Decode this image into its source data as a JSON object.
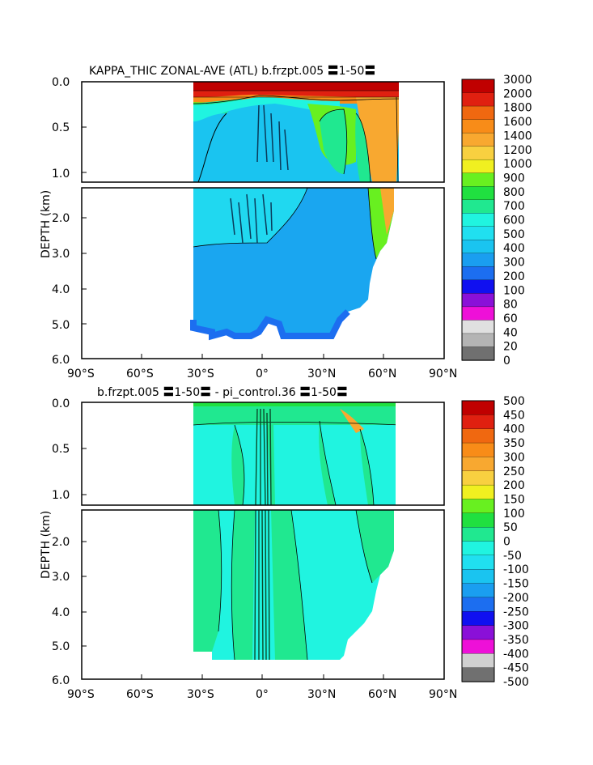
{
  "panels": [
    {
      "title": "KAPPA_THIC ZONAL-AVE (ATL) b.frzpt.005 〓1-50〓",
      "ylabel": "DEPTH (km)",
      "colorbar_labels": [
        "3000",
        "2000",
        "1800",
        "1600",
        "1400",
        "1200",
        "1000",
        "900",
        "800",
        "700",
        "600",
        "500",
        "400",
        "300",
        "200",
        "100",
        "80",
        "60",
        "40",
        "20",
        "0"
      ]
    },
    {
      "title": "b.frzpt.005 〓1-50〓 - pi_control.36 〓1-50〓",
      "ylabel": "DEPTH (km)",
      "colorbar_labels": [
        "500",
        "450",
        "400",
        "350",
        "300",
        "250",
        "200",
        "150",
        "100",
        "50",
        "0",
        "-50",
        "-100",
        "-150",
        "-200",
        "-250",
        "-300",
        "-350",
        "-400",
        "-450",
        "-500"
      ]
    }
  ],
  "chart_data": [
    {
      "type": "heatmap",
      "title": "KAPPA_THIC ZONAL-AVE (ATL) b.frzpt.005 〓1-50〓",
      "xlabel": "",
      "ylabel": "DEPTH (km)",
      "x_ticks": [
        "90°S",
        "60°S",
        "30°S",
        "0°",
        "30°N",
        "60°N",
        "90°N"
      ],
      "y_ticks_upper": [
        "0.0",
        "0.5",
        "1.0"
      ],
      "y_ticks_lower": [
        "2.0",
        "3.0",
        "4.0",
        "5.0",
        "6.0"
      ],
      "xlim": [
        -90,
        90
      ],
      "ylim_km": [
        6.0,
        0.0
      ],
      "levels": [
        0,
        20,
        40,
        60,
        80,
        100,
        200,
        300,
        400,
        500,
        600,
        700,
        800,
        900,
        1000,
        1200,
        1400,
        1600,
        1800,
        2000,
        3000
      ],
      "colors": [
        "#707070",
        "#b4b4b4",
        "#e0e0e0",
        "#ee10d8",
        "#8a10d8",
        "#1010f0",
        "#1c6ef0",
        "#1a9ef0",
        "#1ac4f0",
        "#20e0f0",
        "#20f4e0",
        "#20e890",
        "#20e040",
        "#68f020",
        "#f0f020",
        "#f8d040",
        "#f8a830",
        "#f88c18",
        "#f06810",
        "#e02010",
        "#c00000"
      ],
      "ocean_extent_latitude": [
        -34,
        68
      ],
      "note_values": "upper ~3000 near surface, mostly 200-400 at depth, 1200-1400 near 60N in upper 1 km"
    },
    {
      "type": "heatmap",
      "title": "b.frzpt.005 〓1-50〓 - pi_control.36 〓1-50〓",
      "xlabel": "",
      "ylabel": "DEPTH (km)",
      "x_ticks": [
        "90°S",
        "60°S",
        "30°S",
        "0°",
        "30°N",
        "60°N",
        "90°N"
      ],
      "y_ticks_upper": [
        "0.0",
        "0.5",
        "1.0"
      ],
      "y_ticks_lower": [
        "2.0",
        "3.0",
        "4.0",
        "5.0",
        "6.0"
      ],
      "xlim": [
        -90,
        90
      ],
      "ylim_km": [
        6.0,
        0.0
      ],
      "levels": [
        -500,
        -450,
        -400,
        -350,
        -300,
        -250,
        -200,
        -150,
        -100,
        -50,
        0,
        50,
        100,
        150,
        200,
        250,
        300,
        350,
        400,
        450,
        500
      ],
      "colors": [
        "#707070",
        "#d0d0d0",
        "#ee10d8",
        "#8a10d8",
        "#1010f0",
        "#1c6ef0",
        "#1a9ef0",
        "#1ac4f0",
        "#20e0f0",
        "#20f4e0",
        "#20e890",
        "#20e040",
        "#68f020",
        "#f0f020",
        "#f8d040",
        "#f8a830",
        "#f88c18",
        "#f06810",
        "#e02010",
        "#c00000"
      ],
      "ocean_extent_latitude": [
        -34,
        68
      ],
      "note_values": "differences mostly between -50 and 50"
    }
  ]
}
